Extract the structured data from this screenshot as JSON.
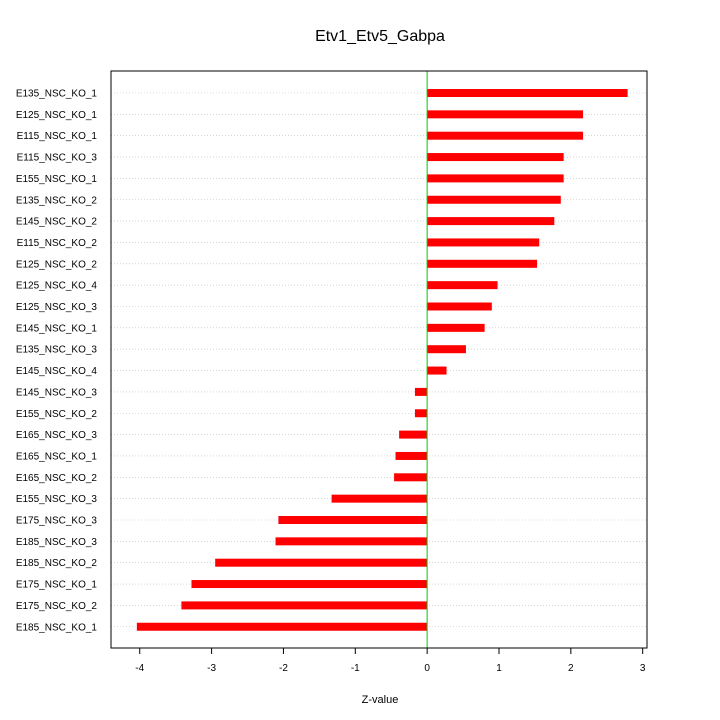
{
  "chart_data": {
    "type": "bar",
    "orientation": "horizontal",
    "title": "Etv1_Etv5_Gabpa",
    "xlabel": "Z-value",
    "ylabel": "",
    "xlim": [
      -4.4,
      3.06
    ],
    "xticks": [
      -4,
      -3,
      -2,
      -1,
      0,
      1,
      2,
      3
    ],
    "xtick_labels": [
      "-4",
      "-3",
      "-2",
      "-1",
      "0",
      "1",
      "2",
      "3"
    ],
    "categories": [
      "E135_NSC_KO_1",
      "E125_NSC_KO_1",
      "E115_NSC_KO_1",
      "E115_NSC_KO_3",
      "E155_NSC_KO_1",
      "E135_NSC_KO_2",
      "E145_NSC_KO_2",
      "E115_NSC_KO_2",
      "E125_NSC_KO_2",
      "E125_NSC_KO_4",
      "E125_NSC_KO_3",
      "E145_NSC_KO_1",
      "E135_NSC_KO_3",
      "E145_NSC_KO_4",
      "E145_NSC_KO_3",
      "E155_NSC_KO_2",
      "E165_NSC_KO_3",
      "E165_NSC_KO_1",
      "E165_NSC_KO_2",
      "E155_NSC_KO_3",
      "E175_NSC_KO_3",
      "E185_NSC_KO_3",
      "E185_NSC_KO_2",
      "E175_NSC_KO_1",
      "E175_NSC_KO_2",
      "E185_NSC_KO_1"
    ],
    "values": [
      2.79,
      2.17,
      2.17,
      1.9,
      1.9,
      1.86,
      1.77,
      1.56,
      1.53,
      0.98,
      0.9,
      0.8,
      0.54,
      0.27,
      -0.17,
      -0.17,
      -0.39,
      -0.44,
      -0.46,
      -1.33,
      -2.07,
      -2.11,
      -2.95,
      -3.28,
      -3.42,
      -4.04
    ],
    "bar_color": "#ff0000",
    "zero_line_color": "#00cc00",
    "grid": "horizontal dotted"
  }
}
